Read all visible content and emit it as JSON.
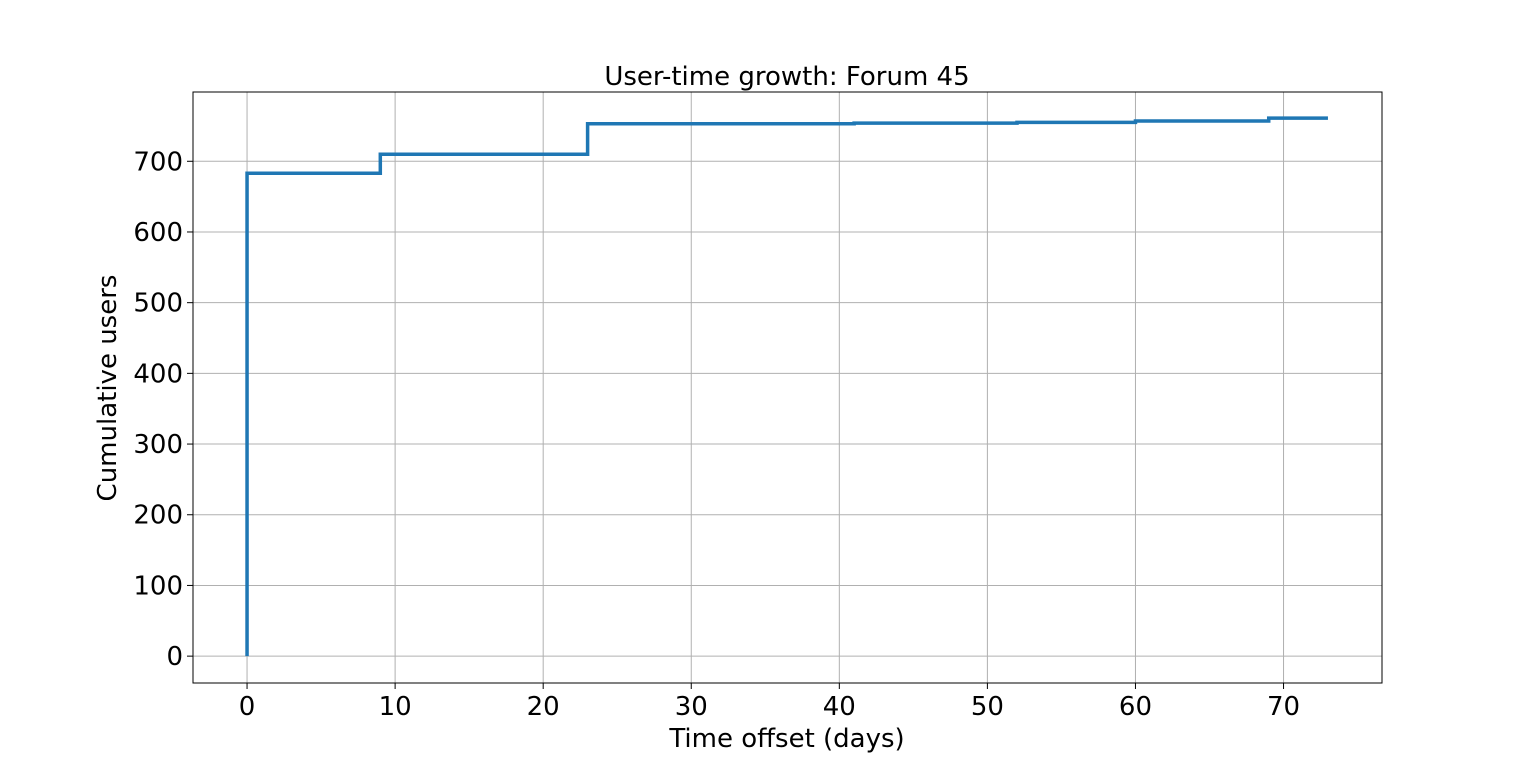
{
  "chart_data": {
    "type": "line",
    "step": "post",
    "title": "User-time growth: Forum 45",
    "xlabel": "Time offset (days)",
    "ylabel": "Cumulative users",
    "xlim": [
      -3.65,
      76.65
    ],
    "ylim": [
      -38,
      798
    ],
    "xticks": [
      0,
      10,
      20,
      30,
      40,
      50,
      60,
      70
    ],
    "xtick_labels": [
      "0",
      "10",
      "20",
      "30",
      "40",
      "50",
      "60",
      "70"
    ],
    "yticks": [
      0,
      100,
      200,
      300,
      400,
      500,
      600,
      700
    ],
    "ytick_labels": [
      "0",
      "100",
      "200",
      "300",
      "400",
      "500",
      "600",
      "700"
    ],
    "grid": true,
    "series": [
      {
        "color": "#1f77b4",
        "x": [
          0,
          0,
          9,
          23,
          41,
          52,
          60,
          69,
          73
        ],
        "y": [
          0,
          683,
          710,
          753,
          754,
          755,
          757,
          761,
          761
        ]
      }
    ]
  }
}
